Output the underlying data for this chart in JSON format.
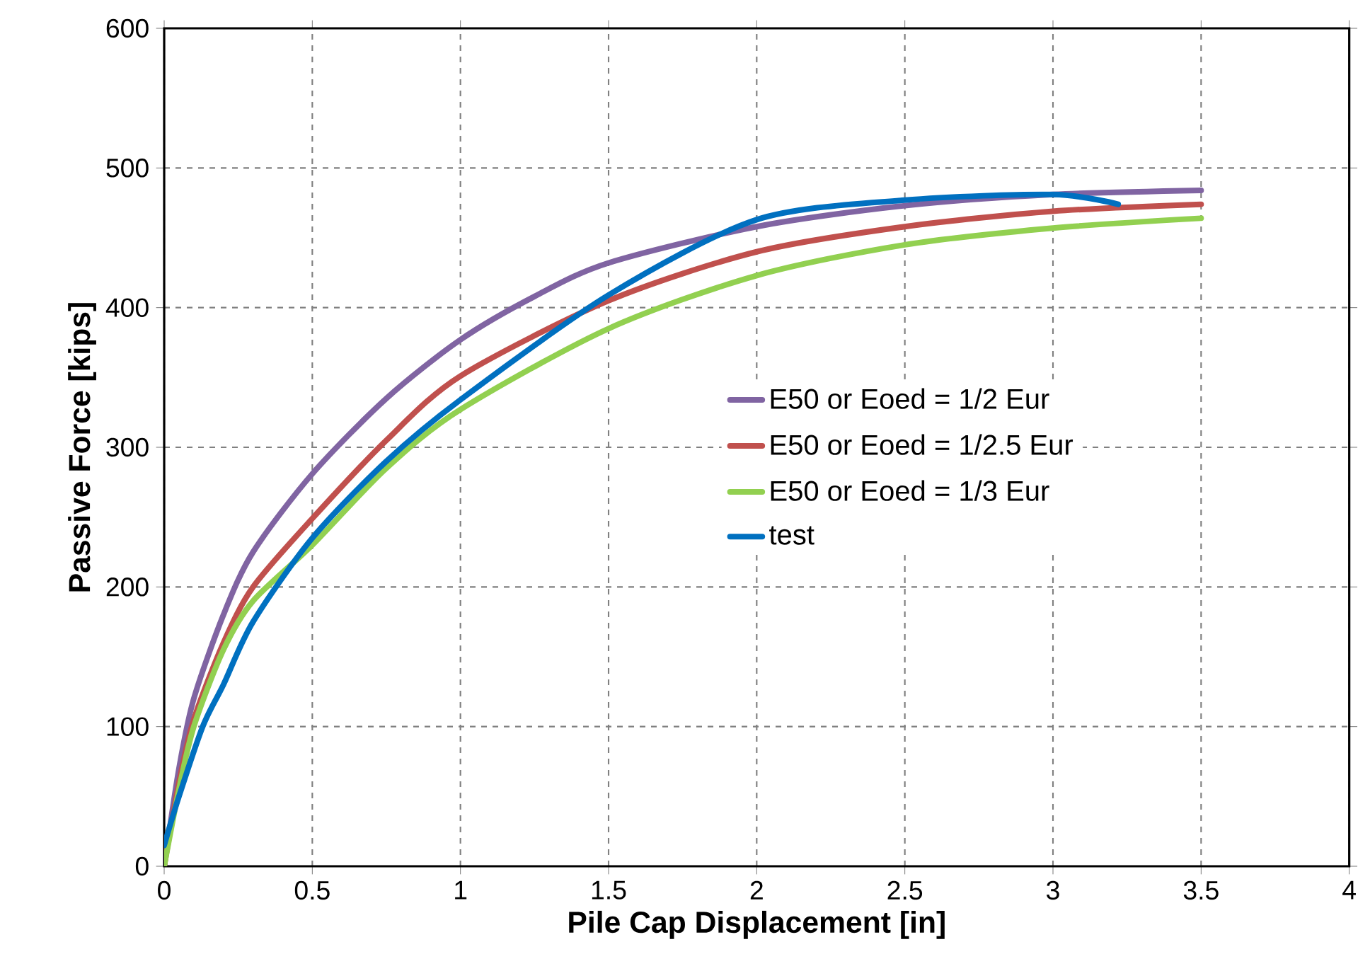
{
  "chart_data": {
    "type": "line",
    "xlabel": "Pile Cap Displacement [in]",
    "ylabel": "Passive Force [kips]",
    "xlim": [
      0,
      4
    ],
    "ylim": [
      0,
      600
    ],
    "xticks": [
      0,
      0.5,
      1,
      1.5,
      2,
      2.5,
      3,
      3.5,
      4
    ],
    "yticks": [
      0,
      100,
      200,
      300,
      400,
      500,
      600
    ],
    "grid": true,
    "legend": "right",
    "marker": "none",
    "line_style": "solid",
    "series": [
      {
        "name": "E50 or Eoed = 1/2 Eur",
        "color": "#8064a2",
        "x": [
          0,
          0.05,
          0.1,
          0.2,
          0.3,
          0.5,
          0.75,
          1,
          1.25,
          1.5,
          2,
          2.5,
          3,
          3.5
        ],
        "values": [
          0,
          70,
          120,
          180,
          225,
          281,
          335,
          377,
          408,
          432,
          458,
          473,
          481,
          484
        ]
      },
      {
        "name": "E50 or Eoed = 1/2.5 Eur",
        "color": "#c0504d",
        "x": [
          0,
          0.05,
          0.1,
          0.2,
          0.3,
          0.5,
          0.75,
          1,
          1.5,
          2,
          2.5,
          3,
          3.5
        ],
        "values": [
          0,
          60,
          105,
          160,
          200,
          249,
          305,
          351,
          405,
          440,
          458,
          469,
          474
        ]
      },
      {
        "name": "E50 or Eoed = 1/3 Eur",
        "color": "#92d050",
        "x": [
          0,
          0.05,
          0.1,
          0.2,
          0.3,
          0.5,
          0.75,
          1,
          1.5,
          2,
          2.5,
          3,
          3.5
        ],
        "values": [
          0,
          55,
          100,
          155,
          190,
          230,
          285,
          327,
          385,
          423,
          445,
          457,
          464
        ]
      },
      {
        "name": "test",
        "color": "#0070c0",
        "x": [
          0,
          0.05,
          0.13,
          0.2,
          0.3,
          0.5,
          0.75,
          1,
          1.5,
          2,
          2.5,
          3,
          3.22
        ],
        "values": [
          15,
          50,
          100,
          130,
          175,
          235,
          290,
          334,
          409,
          463,
          477,
          481,
          474
        ]
      }
    ]
  }
}
